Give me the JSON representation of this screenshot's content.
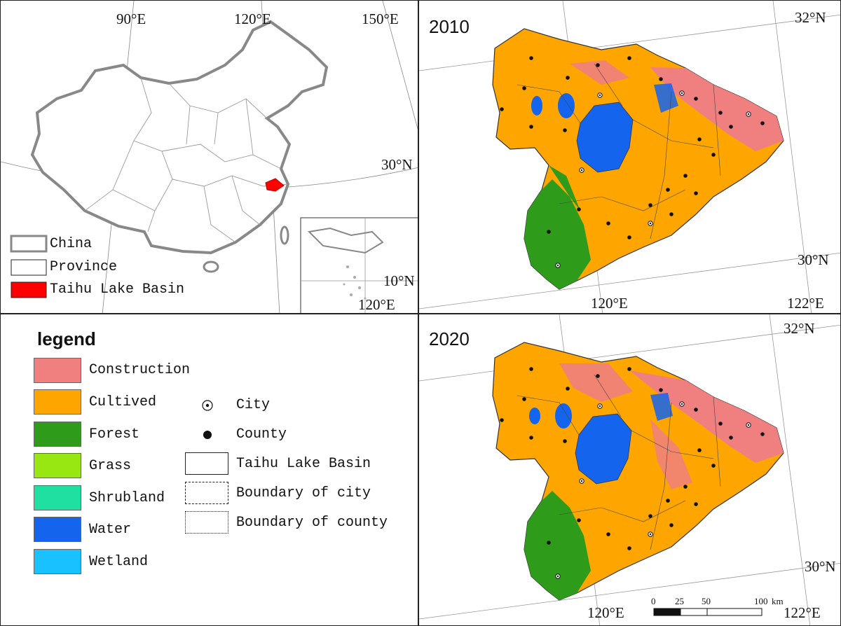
{
  "overview": {
    "lon_labels": [
      "90°E",
      "120°E",
      "150°E"
    ],
    "lat_label": "30°N",
    "inset": {
      "lat_label": "10°N",
      "lon_label": "120°E"
    },
    "legend": [
      {
        "label": "China"
      },
      {
        "label": "Province"
      },
      {
        "label": "Taihu Lake Basin",
        "color": "#ff0000"
      }
    ]
  },
  "map_2010": {
    "year": "2010",
    "lat_top": "32°N",
    "lat_bottom": "30°N",
    "lon_left": "120°E",
    "lon_right": "122°E"
  },
  "map_2020": {
    "year": "2020",
    "lat_top": "32°N",
    "lat_bottom": "30°N",
    "lon_left": "120°E",
    "lon_right": "122°E",
    "scale_bar": {
      "ticks": [
        "0",
        "25",
        "50",
        "100"
      ],
      "unit": "km"
    }
  },
  "legend": {
    "title": "legend",
    "land_classes": [
      {
        "label": "Construction",
        "color": "#f08080"
      },
      {
        "label": "Cultived",
        "color": "#ffa500"
      },
      {
        "label": "Forest",
        "color": "#2e9b1a"
      },
      {
        "label": "Grass",
        "color": "#98e612"
      },
      {
        "label": "Shrubland",
        "color": "#1fe0a0"
      },
      {
        "label": "Water",
        "color": "#1464ee"
      },
      {
        "label": "Wetland",
        "color": "#19c2ff"
      }
    ],
    "symbols": [
      {
        "label": "City",
        "icon": "city-dot-icon"
      },
      {
        "label": "County",
        "icon": "county-dot-icon"
      },
      {
        "label": "Taihu Lake Basin"
      },
      {
        "label": "Boundary of city"
      },
      {
        "label": "Boundary of county"
      }
    ]
  }
}
